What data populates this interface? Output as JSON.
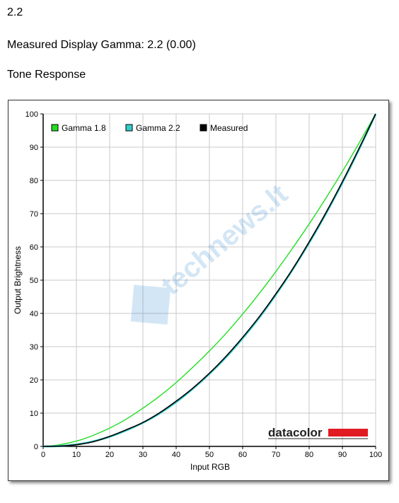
{
  "header": {
    "line1": "2.2",
    "line2": "Measured Display Gamma: 2.2 (0.00)",
    "line3": "Tone Response"
  },
  "chart_data": {
    "type": "line",
    "title": "",
    "xlabel": "Input RGB",
    "ylabel": "Output Brightness",
    "xlim": [
      0,
      100
    ],
    "ylim": [
      0,
      100
    ],
    "xticks": [
      0,
      10,
      20,
      30,
      40,
      50,
      60,
      70,
      80,
      90,
      100
    ],
    "yticks": [
      0,
      10,
      20,
      30,
      40,
      50,
      60,
      70,
      80,
      90,
      100
    ],
    "grid": true,
    "legend_position": "top-left",
    "x": [
      0,
      5,
      10,
      15,
      20,
      25,
      30,
      35,
      40,
      45,
      50,
      55,
      60,
      65,
      70,
      75,
      80,
      85,
      90,
      95,
      100
    ],
    "series": [
      {
        "name": "Gamma 1.8",
        "color": "#22dd22",
        "values": [
          0,
          0.5,
          1.6,
          3.3,
          5.5,
          8.2,
          11.5,
          15.1,
          19.2,
          23.8,
          28.7,
          34.0,
          39.8,
          46.0,
          52.6,
          59.6,
          66.9,
          74.6,
          82.7,
          91.2,
          100
        ]
      },
      {
        "name": "Gamma 2.2",
        "color": "#33cccc",
        "values": [
          0,
          0.1,
          0.6,
          1.5,
          2.9,
          4.8,
          7.1,
          9.9,
          13.3,
          17.3,
          21.8,
          26.8,
          32.5,
          38.7,
          45.6,
          53.1,
          61.2,
          69.9,
          79.3,
          89.3,
          100
        ]
      },
      {
        "name": "Measured",
        "color": "#000000",
        "values": [
          0,
          0.1,
          0.5,
          1.4,
          3.0,
          5.0,
          7.2,
          10.1,
          13.6,
          17.5,
          22.0,
          27.1,
          32.8,
          39.0,
          45.9,
          53.3,
          61.5,
          70.2,
          79.6,
          89.6,
          100
        ]
      }
    ]
  },
  "logo": {
    "text": "datacolor",
    "bar_color": "#e11b22"
  },
  "watermark": {
    "text": "technews.lt"
  }
}
